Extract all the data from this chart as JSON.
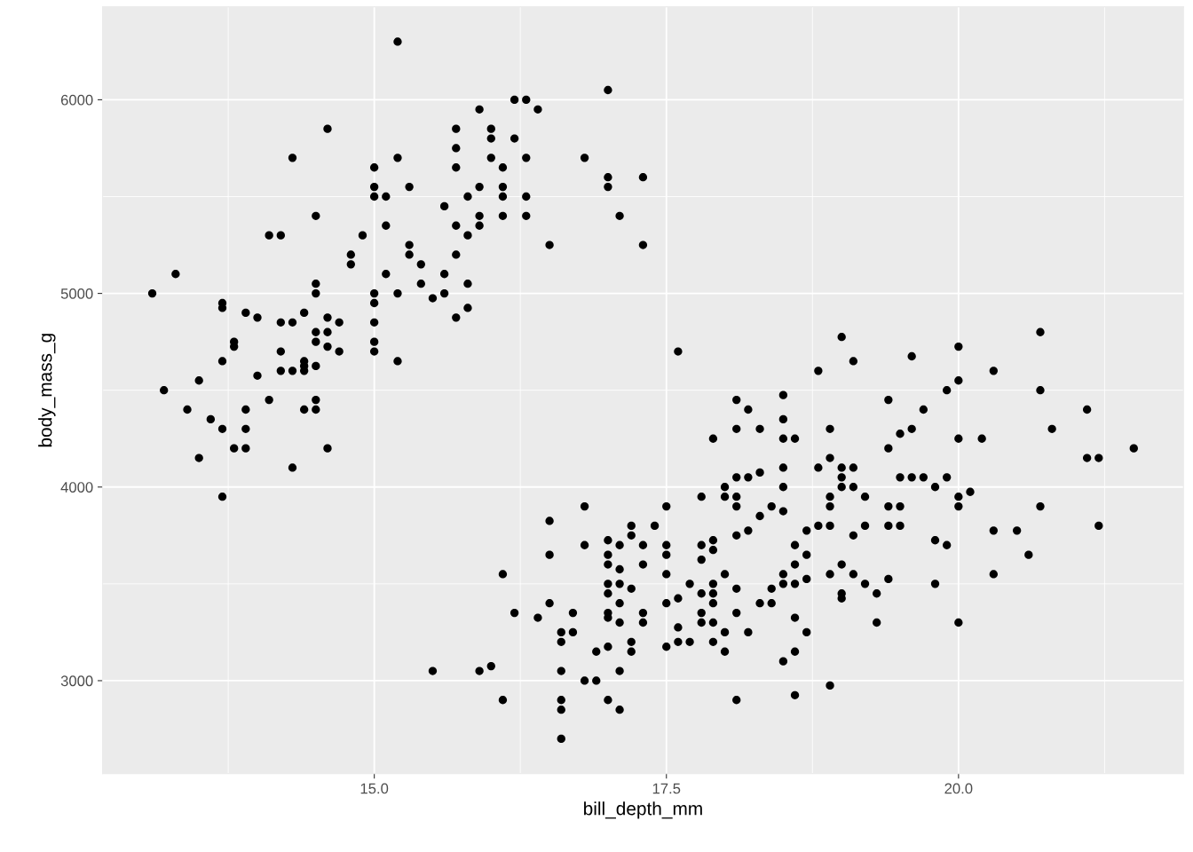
{
  "chart_data": {
    "type": "scatter",
    "xlabel": "bill_depth_mm",
    "ylabel": "body_mass_g",
    "xlim": [
      12.675,
      21.925
    ],
    "ylim": [
      2520,
      6480
    ],
    "xticks": [
      {
        "value": 13.75,
        "label": null
      },
      {
        "value": 15.0,
        "label": "15.0"
      },
      {
        "value": 16.25,
        "label": null
      },
      {
        "value": 17.5,
        "label": "17.5"
      },
      {
        "value": 18.75,
        "label": null
      },
      {
        "value": 20.0,
        "label": "20.0"
      },
      {
        "value": 21.25,
        "label": null
      }
    ],
    "yticks": [
      3000,
      {
        "value": 3500,
        "label": null
      },
      4000,
      {
        "value": 4500,
        "label": null
      },
      5000,
      {
        "value": 5500,
        "label": null
      },
      6000
    ],
    "grid": true,
    "marker": "circle",
    "legend": false,
    "series": [
      {
        "color": "#000000",
        "x": [
          13.1,
          13.2,
          13.3,
          13.4,
          13.5,
          13.5,
          13.6,
          13.7,
          13.7,
          13.7,
          13.7,
          13.7,
          13.8,
          13.8,
          13.8,
          13.9,
          13.9,
          13.9,
          13.9,
          14.0,
          14.0,
          14.1,
          14.1,
          14.2,
          14.2,
          14.2,
          14.2,
          14.3,
          14.3,
          14.3,
          14.3,
          14.4,
          14.4,
          14.4,
          14.4,
          14.4,
          14.5,
          14.5,
          14.5,
          14.5,
          14.5,
          14.5,
          14.5,
          14.5,
          14.6,
          14.6,
          14.6,
          14.6,
          14.6,
          14.7,
          14.7,
          14.8,
          14.8,
          14.9,
          15.0,
          15.0,
          15.0,
          15.0,
          15.0,
          15.0,
          15.0,
          15.0,
          15.1,
          15.1,
          15.1,
          15.2,
          15.2,
          15.2,
          15.2,
          15.3,
          15.3,
          15.3,
          15.4,
          15.4,
          15.5,
          15.6,
          15.6,
          15.6,
          15.7,
          15.7,
          15.7,
          15.7,
          15.7,
          15.7,
          15.8,
          15.8,
          15.8,
          15.8,
          15.9,
          15.9,
          15.9,
          15.9,
          16.0,
          16.0,
          16.0,
          16.1,
          16.1,
          16.1,
          16.1,
          16.2,
          16.2,
          16.3,
          16.3,
          16.3,
          16.3,
          16.4,
          16.5,
          16.8,
          17.0,
          17.0,
          17.0,
          17.1,
          17.3,
          17.3,
          15.5,
          15.9,
          16.0,
          16.1,
          16.1,
          16.2,
          16.4,
          16.5,
          16.5,
          16.5,
          16.6,
          16.6,
          16.6,
          16.6,
          16.6,
          16.6,
          16.7,
          16.7,
          16.8,
          16.8,
          16.8,
          16.9,
          16.9,
          17.0,
          17.0,
          17.0,
          17.0,
          17.0,
          17.0,
          17.0,
          17.0,
          17.0,
          17.1,
          17.1,
          17.1,
          17.1,
          17.1,
          17.1,
          17.1,
          17.2,
          17.2,
          17.2,
          17.2,
          17.2,
          17.3,
          17.3,
          17.3,
          17.3,
          17.4,
          17.5,
          17.5,
          17.5,
          17.5,
          17.5,
          17.5,
          17.6,
          17.6,
          17.6,
          17.6,
          17.7,
          17.7,
          17.8,
          17.8,
          17.8,
          17.8,
          17.8,
          17.8,
          17.9,
          17.9,
          17.9,
          17.9,
          17.9,
          17.9,
          17.9,
          17.9,
          18.0,
          18.0,
          18.0,
          18.0,
          18.0,
          18.1,
          18.1,
          18.1,
          18.1,
          18.1,
          18.1,
          18.1,
          18.1,
          18.1,
          18.2,
          18.2,
          18.2,
          18.2,
          18.3,
          18.3,
          18.3,
          18.3,
          18.4,
          18.4,
          18.4,
          18.5,
          18.5,
          18.5,
          18.5,
          18.5,
          18.5,
          18.5,
          18.5,
          18.5,
          18.6,
          18.6,
          18.6,
          18.6,
          18.6,
          18.6,
          18.6,
          18.7,
          18.7,
          18.7,
          18.7,
          18.8,
          18.8,
          18.8,
          18.9,
          18.9,
          18.9,
          18.9,
          18.9,
          18.9,
          18.9,
          19.0,
          19.0,
          19.0,
          19.0,
          19.0,
          19.0,
          19.0,
          19.1,
          19.1,
          19.1,
          19.1,
          19.1,
          19.2,
          19.2,
          19.2,
          19.3,
          19.3,
          19.4,
          19.4,
          19.4,
          19.4,
          19.4,
          19.5,
          19.5,
          19.5,
          19.5,
          19.6,
          19.6,
          19.6,
          19.7,
          19.7,
          19.8,
          19.8,
          19.8,
          19.9,
          19.9,
          19.9,
          20.0,
          20.0,
          20.0,
          20.0,
          20.0,
          20.0,
          20.1,
          20.2,
          20.3,
          20.3,
          20.3,
          20.5,
          20.6,
          20.7,
          20.7,
          20.7,
          20.8,
          21.1,
          21.1,
          21.2,
          21.2,
          21.5
        ],
        "values": [
          5000,
          4500,
          5100,
          4400,
          4550,
          4150,
          4350,
          4950,
          4925,
          4650,
          4300,
          3950,
          4750,
          4725,
          4200,
          4900,
          4400,
          4300,
          4200,
          4875,
          4575,
          5300,
          4450,
          5300,
          4850,
          4700,
          4600,
          4850,
          4600,
          4100,
          5700,
          4900,
          4650,
          4600,
          4400,
          4625,
          5400,
          5050,
          5000,
          4800,
          4750,
          4625,
          4450,
          4400,
          5850,
          4875,
          4800,
          4725,
          4200,
          4850,
          4700,
          5200,
          5150,
          5300,
          5650,
          5550,
          5500,
          5000,
          4950,
          4850,
          4750,
          4700,
          5500,
          5350,
          5100,
          6300,
          5700,
          5000,
          4650,
          5550,
          5250,
          5200,
          5150,
          5050,
          4975,
          5450,
          5100,
          5000,
          5850,
          5750,
          5650,
          5350,
          5200,
          4875,
          5500,
          5300,
          5050,
          4925,
          5950,
          5550,
          5400,
          5350,
          5850,
          5800,
          5700,
          5650,
          5550,
          5500,
          5400,
          6000,
          5800,
          6000,
          5700,
          5500,
          5400,
          5950,
          5250,
          5700,
          6050,
          5600,
          5550,
          5400,
          5600,
          5250,
          3050,
          3050,
          3075,
          3550,
          2900,
          3350,
          3325,
          3825,
          3650,
          3400,
          3250,
          3200,
          3050,
          2900,
          2850,
          2700,
          3350,
          3250,
          3900,
          3700,
          3000,
          3150,
          3000,
          3725,
          3650,
          3600,
          3500,
          3450,
          3350,
          3325,
          3175,
          2900,
          3700,
          3575,
          3500,
          3400,
          3300,
          3050,
          2850,
          3800,
          3750,
          3475,
          3200,
          3150,
          3700,
          3600,
          3350,
          3300,
          3800,
          3900,
          3700,
          3650,
          3550,
          3400,
          3175,
          3425,
          3275,
          3200,
          4700,
          3500,
          3200,
          3950,
          3700,
          3625,
          3450,
          3350,
          3300,
          4250,
          3725,
          3675,
          3500,
          3450,
          3400,
          3300,
          3200,
          4000,
          3950,
          3550,
          3250,
          3150,
          4450,
          4300,
          4050,
          3950,
          3900,
          3750,
          3475,
          3350,
          2900,
          4400,
          4050,
          3775,
          3250,
          4300,
          4075,
          3850,
          3400,
          3900,
          3475,
          3400,
          4475,
          4350,
          4250,
          4100,
          4000,
          3875,
          3550,
          3500,
          3100,
          4250,
          3700,
          3600,
          3500,
          3325,
          3150,
          2925,
          3775,
          3650,
          3525,
          3250,
          4600,
          4100,
          3800,
          4300,
          4150,
          3950,
          3900,
          3800,
          3550,
          2975,
          4775,
          4100,
          4050,
          4000,
          3600,
          3450,
          3425,
          4650,
          4100,
          4000,
          3750,
          3550,
          3950,
          3800,
          3500,
          3450,
          3300,
          4450,
          4200,
          3900,
          3800,
          3525,
          4275,
          4050,
          3900,
          3800,
          4675,
          4300,
          4050,
          4400,
          4050,
          4000,
          3725,
          3500,
          4500,
          4050,
          3700,
          4725,
          4550,
          4250,
          3950,
          3900,
          3300,
          3975,
          4250,
          4600,
          3775,
          3550,
          3775,
          3650,
          4800,
          4500,
          3900,
          4300,
          4400,
          4150,
          4150,
          3800,
          4200
        ]
      }
    ]
  }
}
